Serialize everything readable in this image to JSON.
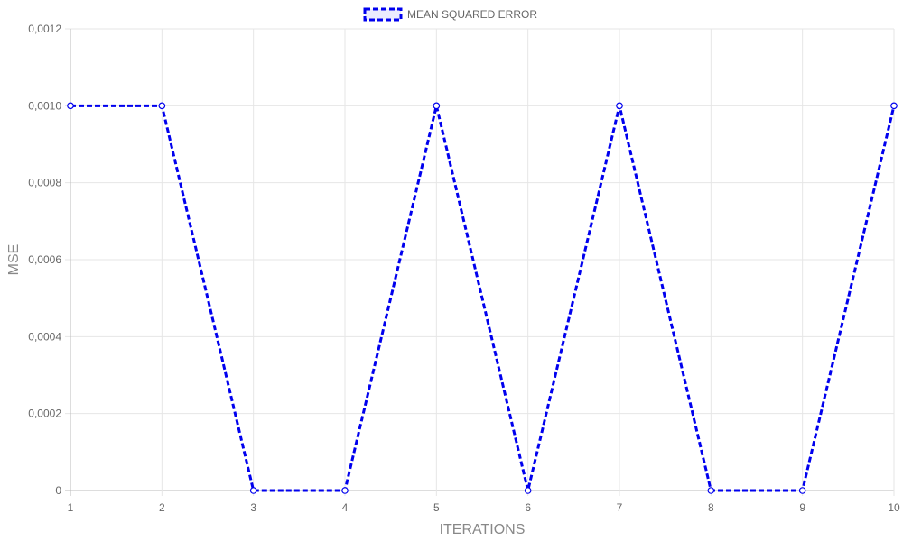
{
  "chart_data": {
    "type": "line",
    "title": "",
    "xlabel": "ITERATIONS",
    "ylabel": "MSE",
    "categories": [
      "1",
      "2",
      "3",
      "4",
      "5",
      "6",
      "7",
      "8",
      "9",
      "10"
    ],
    "series": [
      {
        "name": "MEAN SQUARED ERROR",
        "color": "#0000ee",
        "line_style": "dashed",
        "values": [
          0.001,
          0.001,
          0,
          0,
          0.001,
          0,
          0.001,
          0,
          0,
          0.001
        ]
      }
    ],
    "ylim": [
      0,
      0.0012
    ],
    "y_ticks": [
      "0",
      "0,0002",
      "0,0004",
      "0,0006",
      "0,0008",
      "0,0010",
      "0,0012"
    ],
    "y_tick_values": [
      0,
      0.0002,
      0.0004,
      0.0006,
      0.0008,
      0.001,
      0.0012
    ],
    "grid": true,
    "legend_position": "top-center"
  }
}
